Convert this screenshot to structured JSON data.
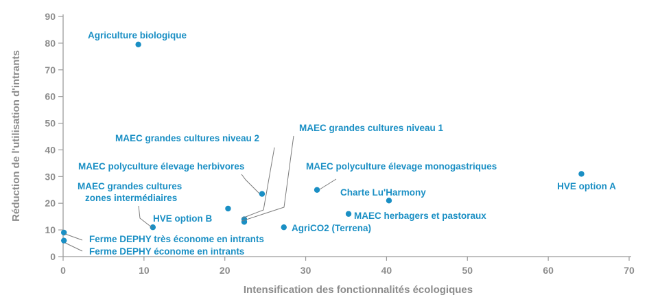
{
  "chart_data": {
    "type": "scatter",
    "title": "",
    "xlabel": "Intensification des fonctionnalités écologiques",
    "ylabel": "Réduction de l'utilisation d'intrants",
    "xlim": [
      0,
      70
    ],
    "ylim": [
      0,
      90
    ],
    "xticks": [
      "0",
      "10",
      "20",
      "30",
      "40",
      "50",
      "60",
      "70"
    ],
    "yticks": [
      "0",
      "10",
      "20",
      "30",
      "40",
      "50",
      "60",
      "70",
      "80",
      "90"
    ],
    "grid": false,
    "point_color": "#1a8fc4",
    "axis_color": "#9a9a9a",
    "points": [
      {
        "label": "Agriculture biologique",
        "x": 9.3,
        "y": 79.5
      },
      {
        "label": "HVE option A",
        "x": 64.1,
        "y": 31
      },
      {
        "label": "MAEC polyculture élevage monogastriques",
        "x": 31.4,
        "y": 25
      },
      {
        "label": "Charte Lu'Harmony",
        "x": 40.3,
        "y": 21
      },
      {
        "label": "MAEC herbagers et pastoraux",
        "x": 35.3,
        "y": 16
      },
      {
        "label": "AgriCO2 (Terrena)",
        "x": 27.3,
        "y": 11
      },
      {
        "label": "MAEC polyculture élevage herbivores",
        "x": 24.6,
        "y": 23.5
      },
      {
        "label": "MAEC grandes cultures niveau 2",
        "x": 22.4,
        "y": 14
      },
      {
        "label": "MAEC grandes cultures niveau 1",
        "x": 22.4,
        "y": 13
      },
      {
        "label": "HVE option B",
        "x": 20.4,
        "y": 18
      },
      {
        "label": "MAEC grandes cultures zones intermédiaires",
        "x": 11.1,
        "y": 11
      },
      {
        "label": "Ferme DEPHY très économe en intrants",
        "x": 0.1,
        "y": 9
      },
      {
        "label": "Ferme DEPHY économe en intrants",
        "x": 0.1,
        "y": 6
      }
    ]
  }
}
